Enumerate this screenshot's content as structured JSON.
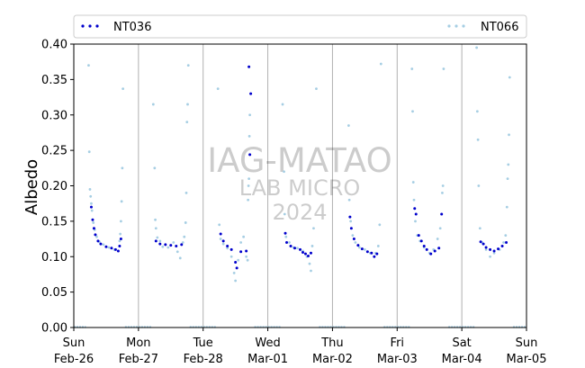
{
  "chart_data": {
    "type": "scatter",
    "xlabel": "",
    "ylabel": "Albedo",
    "ylim": [
      0,
      0.4
    ],
    "xlim": [
      "2023-02-26T00:00",
      "2023-03-05T00:00"
    ],
    "grid": "vertical lines at day boundaries",
    "legend_placement": "top, spanning full width",
    "x_tick_labels": [
      [
        "Sun",
        "Feb-26"
      ],
      [
        "Mon",
        "Feb-27"
      ],
      [
        "Tue",
        "Feb-28"
      ],
      [
        "Wed",
        "Mar-01"
      ],
      [
        "Thu",
        "Mar-02"
      ],
      [
        "Fri",
        "Mar-03"
      ],
      [
        "Sat",
        "Mar-04"
      ],
      [
        "Sun",
        "Mar-05"
      ]
    ],
    "y_ticks": [
      0.0,
      0.05,
      0.1,
      0.15,
      0.2,
      0.25,
      0.3,
      0.35,
      0.4
    ],
    "y_tick_labels": [
      "0.00",
      "0.05",
      "0.10",
      "0.15",
      "0.20",
      "0.25",
      "0.30",
      "0.35",
      "0.40"
    ],
    "watermark": [
      "IAG-MATAO",
      "LAB MICRO",
      "2024"
    ],
    "series": [
      {
        "name": "NT036",
        "color": "#0000cc",
        "points": [
          [
            "2023-02-26T06:30",
            0.17
          ],
          [
            "2023-02-26T07:00",
            0.152
          ],
          [
            "2023-02-26T07:30",
            0.14
          ],
          [
            "2023-02-26T08:00",
            0.131
          ],
          [
            "2023-02-26T09:00",
            0.122
          ],
          [
            "2023-02-26T10:00",
            0.118
          ],
          [
            "2023-02-26T12:00",
            0.114
          ],
          [
            "2023-02-26T14:00",
            0.112
          ],
          [
            "2023-02-26T15:30",
            0.11
          ],
          [
            "2023-02-26T16:30",
            0.108
          ],
          [
            "2023-02-26T17:00",
            0.115
          ],
          [
            "2023-02-26T17:30",
            0.125
          ],
          [
            "2023-02-27T06:30",
            0.122
          ],
          [
            "2023-02-27T08:00",
            0.118
          ],
          [
            "2023-02-27T10:00",
            0.117
          ],
          [
            "2023-02-27T12:00",
            0.116
          ],
          [
            "2023-02-27T14:00",
            0.115
          ],
          [
            "2023-02-27T16:00",
            0.117
          ],
          [
            "2023-02-28T06:30",
            0.132
          ],
          [
            "2023-02-28T07:30",
            0.122
          ],
          [
            "2023-02-28T09:00",
            0.115
          ],
          [
            "2023-02-28T10:30",
            0.11
          ],
          [
            "2023-02-28T12:00",
            0.092
          ],
          [
            "2023-02-28T12:30",
            0.084
          ],
          [
            "2023-02-28T14:00",
            0.107
          ],
          [
            "2023-02-28T16:00",
            0.108
          ],
          [
            "2023-02-28T17:00",
            0.368
          ],
          [
            "2023-02-28T17:20",
            0.244
          ],
          [
            "2023-02-28T17:40",
            0.33
          ],
          [
            "2023-03-01T06:30",
            0.133
          ],
          [
            "2023-03-01T07:00",
            0.12
          ],
          [
            "2023-03-01T08:30",
            0.115
          ],
          [
            "2023-03-01T10:00",
            0.112
          ],
          [
            "2023-03-01T12:00",
            0.11
          ],
          [
            "2023-03-01T13:00",
            0.106
          ],
          [
            "2023-03-01T14:00",
            0.104
          ],
          [
            "2023-03-01T15:00",
            0.101
          ],
          [
            "2023-03-01T16:00",
            0.105
          ],
          [
            "2023-03-02T06:30",
            0.156
          ],
          [
            "2023-03-02T07:00",
            0.14
          ],
          [
            "2023-03-02T08:00",
            0.125
          ],
          [
            "2023-03-02T09:30",
            0.116
          ],
          [
            "2023-03-02T11:00",
            0.111
          ],
          [
            "2023-03-02T13:00",
            0.107
          ],
          [
            "2023-03-02T14:30",
            0.105
          ],
          [
            "2023-03-02T15:30",
            0.1
          ],
          [
            "2023-03-02T16:30",
            0.104
          ],
          [
            "2023-03-03T06:30",
            0.168
          ],
          [
            "2023-03-03T07:00",
            0.16
          ],
          [
            "2023-03-03T08:00",
            0.13
          ],
          [
            "2023-03-03T09:00",
            0.122
          ],
          [
            "2023-03-03T10:00",
            0.115
          ],
          [
            "2023-03-03T11:00",
            0.11
          ],
          [
            "2023-03-03T12:30",
            0.104
          ],
          [
            "2023-03-03T14:00",
            0.108
          ],
          [
            "2023-03-03T15:30",
            0.112
          ],
          [
            "2023-03-03T16:30",
            0.16
          ],
          [
            "2023-03-04T07:00",
            0.121
          ],
          [
            "2023-03-04T08:00",
            0.118
          ],
          [
            "2023-03-04T09:00",
            0.113
          ],
          [
            "2023-03-04T10:30",
            0.11
          ],
          [
            "2023-03-04T12:00",
            0.108
          ],
          [
            "2023-03-04T13:30",
            0.111
          ],
          [
            "2023-03-04T15:00",
            0.115
          ],
          [
            "2023-03-04T16:30",
            0.12
          ]
        ]
      },
      {
        "name": "NT066",
        "color": "#a6cee3",
        "points": [
          [
            "2023-02-26T05:30",
            0.37
          ],
          [
            "2023-02-26T05:45",
            0.248
          ],
          [
            "2023-02-26T06:00",
            0.195
          ],
          [
            "2023-02-26T06:15",
            0.185
          ],
          [
            "2023-02-26T06:30",
            0.175
          ],
          [
            "2023-02-26T06:45",
            0.165
          ],
          [
            "2023-02-26T07:15",
            0.148
          ],
          [
            "2023-02-26T07:45",
            0.138
          ],
          [
            "2023-02-26T08:30",
            0.128
          ],
          [
            "2023-02-26T09:30",
            0.121
          ],
          [
            "2023-02-26T11:00",
            0.117
          ],
          [
            "2023-02-26T13:00",
            0.113
          ],
          [
            "2023-02-26T15:00",
            0.11
          ],
          [
            "2023-02-26T17:00",
            0.122
          ],
          [
            "2023-02-26T17:15",
            0.132
          ],
          [
            "2023-02-26T17:30",
            0.15
          ],
          [
            "2023-02-26T17:45",
            0.178
          ],
          [
            "2023-02-26T18:00",
            0.225
          ],
          [
            "2023-02-26T18:15",
            0.337
          ],
          [
            "2023-02-27T06:00",
            0.225
          ],
          [
            "2023-02-27T06:15",
            0.152
          ],
          [
            "2023-02-27T06:30",
            0.14
          ],
          [
            "2023-02-27T07:00",
            0.127
          ],
          [
            "2023-02-27T08:00",
            0.122
          ],
          [
            "2023-02-27T09:00",
            0.114
          ],
          [
            "2023-02-27T11:00",
            0.113
          ],
          [
            "2023-02-27T13:00",
            0.12
          ],
          [
            "2023-02-27T14:30",
            0.107
          ],
          [
            "2023-02-27T15:30",
            0.098
          ],
          [
            "2023-02-27T16:30",
            0.12
          ],
          [
            "2023-02-27T17:00",
            0.128
          ],
          [
            "2023-02-27T17:30",
            0.148
          ],
          [
            "2023-02-27T17:45",
            0.19
          ],
          [
            "2023-02-27T18:00",
            0.29
          ],
          [
            "2023-02-27T18:15",
            0.315
          ],
          [
            "2023-02-27T18:30",
            0.37
          ],
          [
            "2023-02-27T05:30",
            0.315
          ],
          [
            "2023-02-28T06:00",
            0.145
          ],
          [
            "2023-02-28T06:30",
            0.125
          ],
          [
            "2023-02-28T07:30",
            0.118
          ],
          [
            "2023-02-28T09:00",
            0.112
          ],
          [
            "2023-02-28T10:30",
            0.1
          ],
          [
            "2023-02-28T11:30",
            0.077
          ],
          [
            "2023-02-28T12:00",
            0.066
          ],
          [
            "2023-02-28T13:00",
            0.095
          ],
          [
            "2023-02-28T14:00",
            0.12
          ],
          [
            "2023-02-28T15:00",
            0.128
          ],
          [
            "2023-02-28T16:00",
            0.1
          ],
          [
            "2023-02-28T16:30",
            0.095
          ],
          [
            "2023-02-28T16:40",
            0.18
          ],
          [
            "2023-02-28T16:50",
            0.2
          ],
          [
            "2023-02-28T17:00",
            0.21
          ],
          [
            "2023-02-28T17:10",
            0.27
          ],
          [
            "2023-02-28T17:20",
            0.3
          ],
          [
            "2023-02-28T05:30",
            0.337
          ],
          [
            "2023-03-01T05:30",
            0.315
          ],
          [
            "2023-03-01T06:00",
            0.22
          ],
          [
            "2023-03-01T06:15",
            0.16
          ],
          [
            "2023-03-01T06:45",
            0.128
          ],
          [
            "2023-03-01T08:00",
            0.12
          ],
          [
            "2023-03-01T09:30",
            0.113
          ],
          [
            "2023-03-01T11:00",
            0.112
          ],
          [
            "2023-03-01T13:00",
            0.108
          ],
          [
            "2023-03-01T14:30",
            0.1
          ],
          [
            "2023-03-01T15:30",
            0.09
          ],
          [
            "2023-03-01T16:00",
            0.08
          ],
          [
            "2023-03-01T16:30",
            0.115
          ],
          [
            "2023-03-01T17:00",
            0.14
          ],
          [
            "2023-03-01T18:00",
            0.337
          ],
          [
            "2023-03-02T06:00",
            0.285
          ],
          [
            "2023-03-02T06:15",
            0.18
          ],
          [
            "2023-03-02T06:45",
            0.15
          ],
          [
            "2023-03-02T07:30",
            0.13
          ],
          [
            "2023-03-02T08:30",
            0.12
          ],
          [
            "2023-03-02T10:00",
            0.113
          ],
          [
            "2023-03-02T12:00",
            0.11
          ],
          [
            "2023-03-02T14:00",
            0.105
          ],
          [
            "2023-03-02T16:00",
            0.105
          ],
          [
            "2023-03-02T17:00",
            0.115
          ],
          [
            "2023-03-02T17:30",
            0.145
          ],
          [
            "2023-03-02T18:00",
            0.372
          ],
          [
            "2023-03-03T05:30",
            0.365
          ],
          [
            "2023-03-03T05:45",
            0.305
          ],
          [
            "2023-03-03T06:00",
            0.205
          ],
          [
            "2023-03-03T06:15",
            0.18
          ],
          [
            "2023-03-03T06:45",
            0.15
          ],
          [
            "2023-03-03T07:30",
            0.13
          ],
          [
            "2023-03-03T08:30",
            0.122
          ],
          [
            "2023-03-03T10:00",
            0.113
          ],
          [
            "2023-03-03T12:00",
            0.105
          ],
          [
            "2023-03-03T13:30",
            0.11
          ],
          [
            "2023-03-03T15:00",
            0.125
          ],
          [
            "2023-03-03T16:00",
            0.14
          ],
          [
            "2023-03-03T16:45",
            0.19
          ],
          [
            "2023-03-03T17:00",
            0.2
          ],
          [
            "2023-03-03T17:15",
            0.365
          ],
          [
            "2023-03-04T05:30",
            0.395
          ],
          [
            "2023-03-04T05:45",
            0.305
          ],
          [
            "2023-03-04T06:00",
            0.265
          ],
          [
            "2023-03-04T06:15",
            0.2
          ],
          [
            "2023-03-04T06:45",
            0.14
          ],
          [
            "2023-03-04T07:30",
            0.12
          ],
          [
            "2023-03-04T09:00",
            0.11
          ],
          [
            "2023-03-04T10:30",
            0.1
          ],
          [
            "2023-03-04T12:00",
            0.105
          ],
          [
            "2023-03-04T14:00",
            0.11
          ],
          [
            "2023-03-04T15:30",
            0.12
          ],
          [
            "2023-03-04T16:15",
            0.13
          ],
          [
            "2023-03-04T16:45",
            0.17
          ],
          [
            "2023-03-04T17:00",
            0.21
          ],
          [
            "2023-03-04T17:15",
            0.23
          ],
          [
            "2023-03-04T17:30",
            0.272
          ],
          [
            "2023-03-04T17:45",
            0.353
          ]
        ],
        "zero_baseline": true
      }
    ],
    "zero_segments": [
      [
        "2023-02-26T00:00",
        "2023-02-26T04:30"
      ],
      [
        "2023-02-26T19:00",
        "2023-02-27T05:00"
      ],
      [
        "2023-02-27T19:00",
        "2023-02-28T05:00"
      ],
      [
        "2023-02-28T19:00",
        "2023-03-01T05:00"
      ],
      [
        "2023-03-01T19:00",
        "2023-03-02T05:00"
      ],
      [
        "2023-03-02T19:00",
        "2023-03-03T05:00"
      ],
      [
        "2023-03-03T19:00",
        "2023-03-04T05:00"
      ],
      [
        "2023-03-04T19:00",
        "2023-03-05T00:00"
      ]
    ]
  }
}
